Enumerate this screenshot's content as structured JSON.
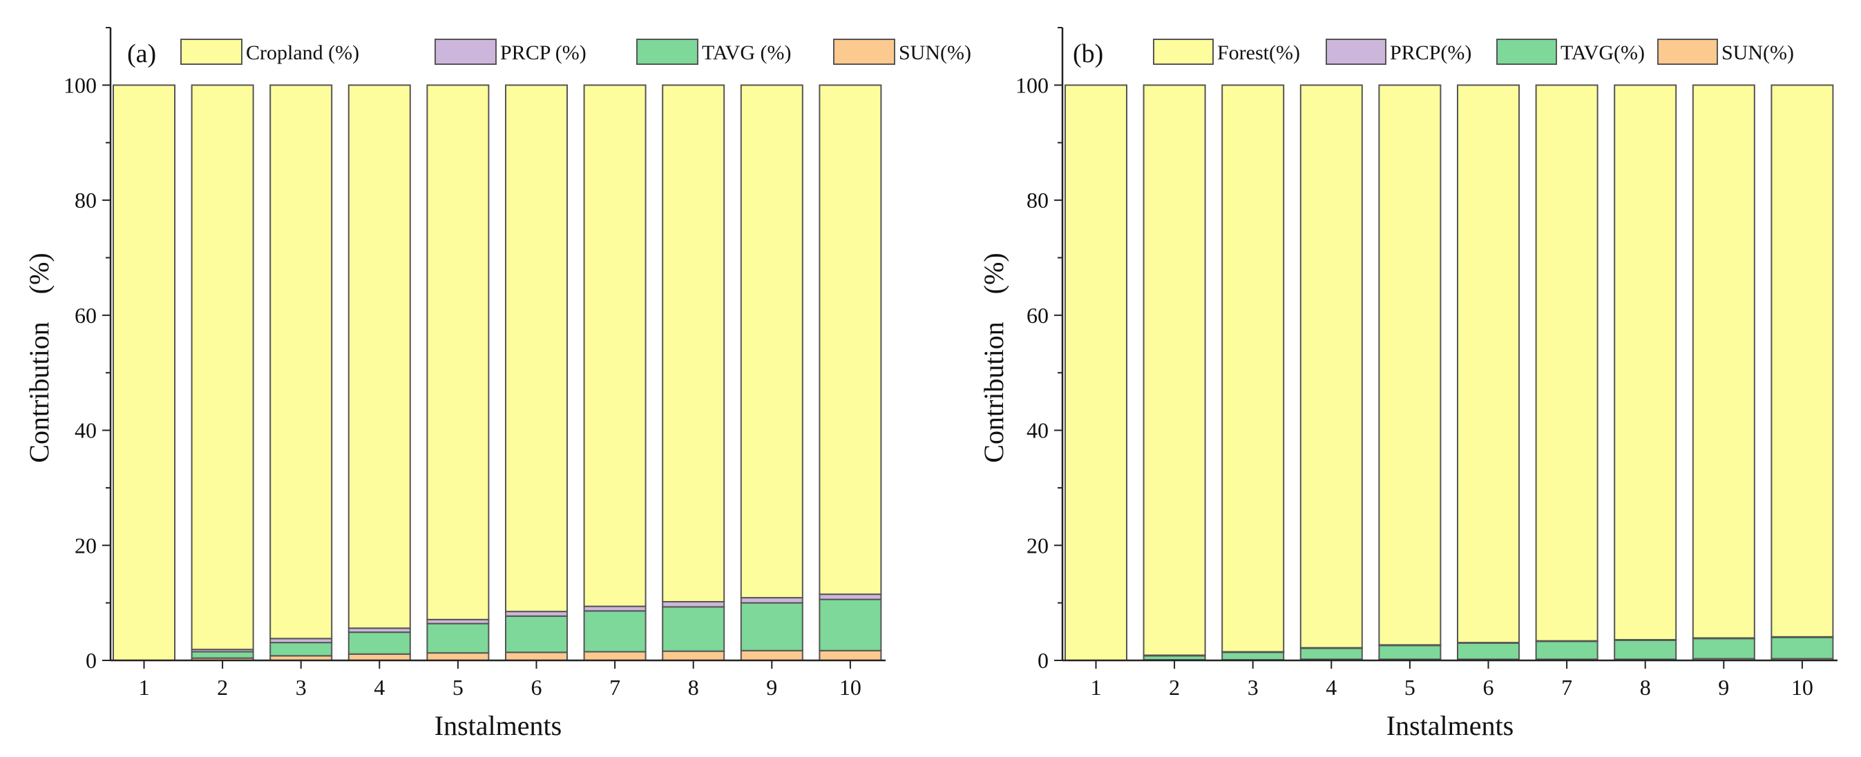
{
  "colors": {
    "land": "#fdfd9e",
    "prcp": "#cdb6db",
    "tavg": "#7dd89a",
    "sun": "#fcc98f",
    "bar_stroke": "#555555",
    "axis": "#222222"
  },
  "chart_data": [
    {
      "type": "bar",
      "stacked": true,
      "panel_label": "(a)",
      "title": "",
      "xlabel": "Instalments",
      "ylabel": "Contribution　(%)",
      "ylim": [
        0,
        110
      ],
      "yticks": [
        "0",
        "20",
        "40",
        "60",
        "80",
        "100"
      ],
      "categories": [
        "1",
        "2",
        "3",
        "4",
        "5",
        "6",
        "7",
        "8",
        "9",
        "10"
      ],
      "legend_position": "top",
      "series": [
        {
          "name": "SUN(%)",
          "key": "sun",
          "values": [
            0,
            0.4,
            0.8,
            1.1,
            1.3,
            1.4,
            1.5,
            1.6,
            1.7,
            1.7
          ]
        },
        {
          "name": "TAVG (%)",
          "key": "tavg",
          "values": [
            0,
            1.1,
            2.3,
            3.8,
            5.1,
            6.3,
            7.1,
            7.7,
            8.3,
            8.9
          ]
        },
        {
          "name": "PRCP (%)",
          "key": "prcp",
          "values": [
            0,
            0.4,
            0.7,
            0.7,
            0.7,
            0.8,
            0.8,
            0.9,
            0.9,
            0.9
          ]
        },
        {
          "name": "Cropland (%)",
          "key": "land",
          "values": [
            100,
            98.1,
            96.2,
            94.4,
            92.9,
            91.5,
            90.6,
            89.8,
            89.1,
            88.5
          ]
        }
      ],
      "legend_order": [
        "Cropland (%)",
        "PRCP (%)",
        "TAVG (%)",
        "SUN(%)"
      ]
    },
    {
      "type": "bar",
      "stacked": true,
      "panel_label": "(b)",
      "title": "",
      "xlabel": "Instalments",
      "ylabel": "Contribution　(%)",
      "ylim": [
        0,
        110
      ],
      "yticks": [
        "0",
        "20",
        "40",
        "60",
        "80",
        "100"
      ],
      "categories": [
        "1",
        "2",
        "3",
        "4",
        "5",
        "6",
        "7",
        "8",
        "9",
        "10"
      ],
      "legend_position": "top",
      "series": [
        {
          "name": "SUN(%)",
          "key": "sun",
          "values": [
            0,
            0.1,
            0.1,
            0.2,
            0.2,
            0.2,
            0.2,
            0.2,
            0.3,
            0.3
          ]
        },
        {
          "name": "TAVG(%)",
          "key": "tavg",
          "values": [
            0,
            0.7,
            1.3,
            1.9,
            2.4,
            2.8,
            3.1,
            3.3,
            3.5,
            3.7
          ]
        },
        {
          "name": "PRCP(%)",
          "key": "prcp",
          "values": [
            0,
            0.1,
            0.1,
            0.1,
            0.1,
            0.1,
            0.1,
            0.1,
            0.1,
            0.1
          ]
        },
        {
          "name": "Forest(%)",
          "key": "land",
          "values": [
            100,
            99.1,
            98.5,
            97.8,
            97.3,
            96.9,
            96.6,
            96.4,
            96.1,
            95.9
          ]
        }
      ],
      "legend_order": [
        "Forest(%)",
        "PRCP(%)",
        "TAVG(%)",
        "SUN(%)"
      ]
    }
  ]
}
